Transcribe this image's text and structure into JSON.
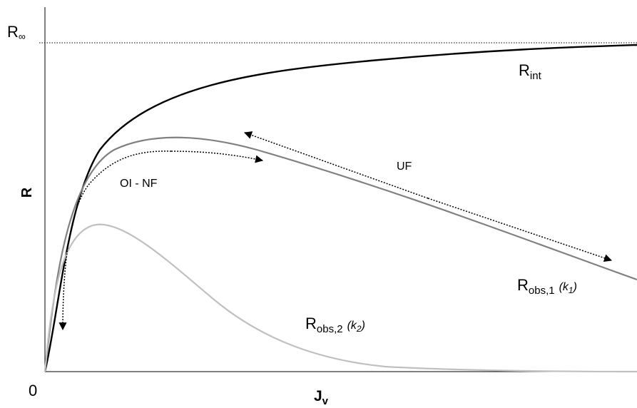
{
  "diagram": {
    "y_axis_label": "R",
    "x_axis_label_main": "J",
    "x_axis_label_sub": "v",
    "origin_label": "0",
    "asymptote_label_main": "R",
    "asymptote_label_sub": "∞",
    "curves": {
      "r_int": {
        "label_main": "R",
        "label_sub": "int",
        "color": "#000000"
      },
      "r_obs1": {
        "label_main": "R",
        "label_sub": "obs,1",
        "label_k": "(k",
        "label_k_sub": "1",
        "label_k_close": ")",
        "color": "#808080"
      },
      "r_obs2": {
        "label_main": "R",
        "label_sub": "obs,2",
        "label_k": "(k",
        "label_k_sub": "2",
        "label_k_close": ")",
        "color": "#c0c0c0"
      }
    },
    "regions": {
      "oi_nf": "OI - NF",
      "uf": "UF"
    }
  }
}
